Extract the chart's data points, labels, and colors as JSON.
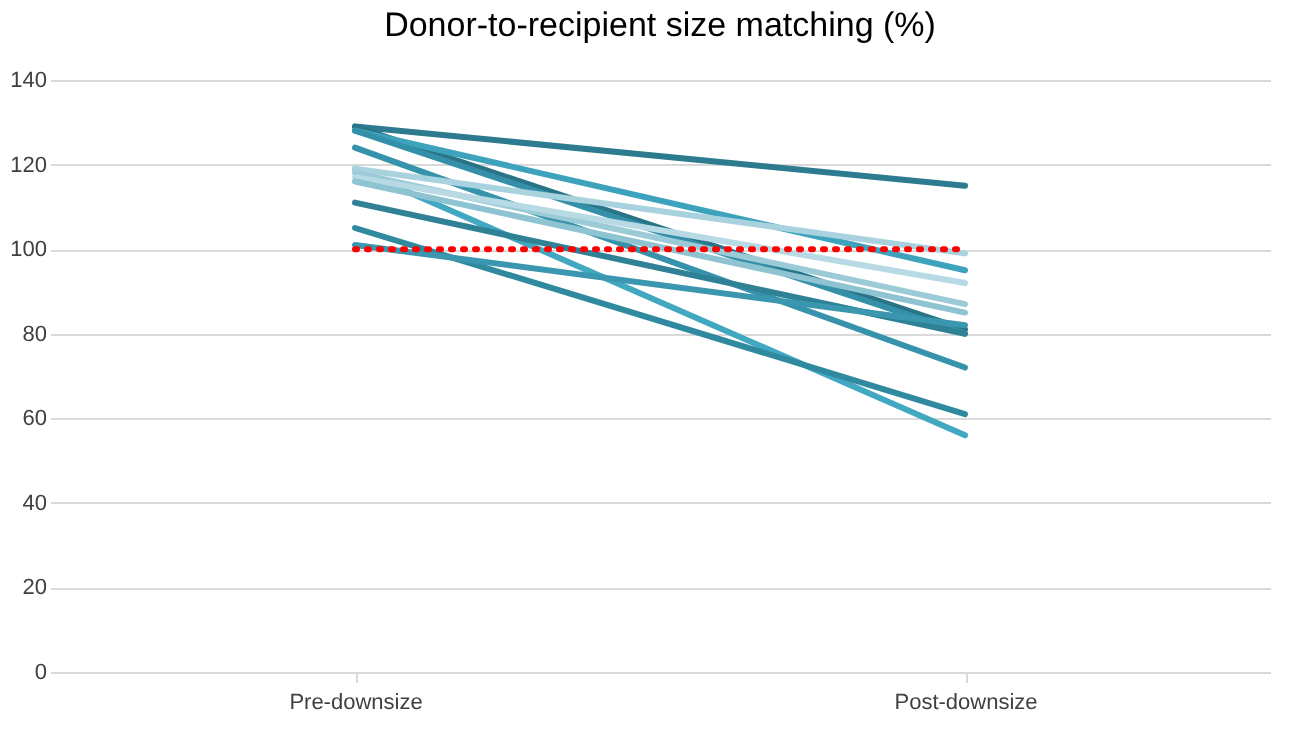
{
  "chart_data": {
    "type": "line",
    "title": "Donor-to-recipient size matching (%)",
    "categories": [
      "Pre-downsize",
      "Post-downsize"
    ],
    "series": [
      {
        "color": "#2c7b8e",
        "values": [
          129,
          115
        ]
      },
      {
        "color": "#2a7487",
        "values": [
          129,
          81
        ]
      },
      {
        "color": "#3da3bd",
        "values": [
          128,
          95
        ]
      },
      {
        "color": "#3490a8",
        "values": [
          128,
          80
        ]
      },
      {
        "color": "#3793ab",
        "values": [
          124,
          72
        ]
      },
      {
        "color": "#42a8c2",
        "values": [
          119,
          56
        ]
      },
      {
        "color": "#a8d2de",
        "values": [
          119,
          99
        ]
      },
      {
        "color": "#9ccbd8",
        "values": [
          118,
          87
        ]
      },
      {
        "color": "#b7dae4",
        "values": [
          117,
          92
        ]
      },
      {
        "color": "#8ec3d2",
        "values": [
          116,
          85
        ]
      },
      {
        "color": "#2f8296",
        "values": [
          111,
          80
        ]
      },
      {
        "color": "#2f8aa0",
        "values": [
          105,
          61
        ]
      },
      {
        "color": "#3a97af",
        "values": [
          101,
          82
        ]
      }
    ],
    "ref_lines": [
      {
        "axis": "y",
        "value": 100,
        "color": "#ff0000",
        "line_style": "dotted"
      }
    ],
    "ylim": [
      0,
      140
    ],
    "yticks": [
      0,
      20,
      40,
      60,
      80,
      100,
      120,
      140
    ],
    "grid": "y",
    "legend": false
  }
}
